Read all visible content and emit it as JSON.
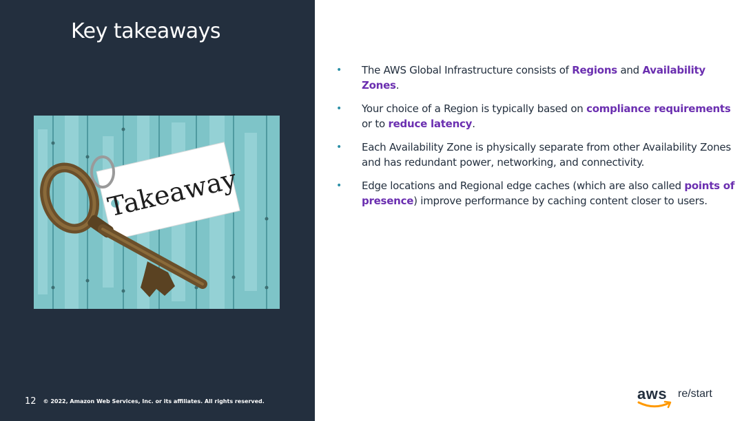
{
  "slide": {
    "title": "Key takeaways",
    "image": {
      "tag_text": "Takeaway"
    },
    "bullets": [
      [
        {
          "t": "The AWS Global Infrastructure consists of "
        },
        {
          "t": "Regions",
          "hl": true
        },
        {
          "t": " and "
        },
        {
          "t": "Availability Zones",
          "hl": true
        },
        {
          "t": "."
        }
      ],
      [
        {
          "t": "Your choice of a Region is typically based on "
        },
        {
          "t": "compliance requirements",
          "hl": true
        },
        {
          "t": " or to "
        },
        {
          "t": "reduce latency",
          "hl": true
        },
        {
          "t": "."
        }
      ],
      [
        {
          "t": "Each Availability Zone is physically separate from other Availability Zones and has redundant power, networking, and connectivity."
        }
      ],
      [
        {
          "t": "Edge locations and Regional edge caches (which are also called "
        },
        {
          "t": "points of presence",
          "hl": true
        },
        {
          "t": ") improve performance by caching content closer to users."
        }
      ]
    ],
    "bullet_glyph": "•",
    "page_number": "12",
    "copyright": "© 2022, Amazon Web Services, Inc. or its affiliates. All rights reserved.",
    "logo": {
      "brand": "aws",
      "product": "re/start"
    },
    "colors": {
      "panel": "#232f3e",
      "highlight": "#6b2fb0",
      "bullet": "#2a8fa6",
      "wood": "#7ec4c8",
      "logo_smile": "#ff9900"
    }
  }
}
